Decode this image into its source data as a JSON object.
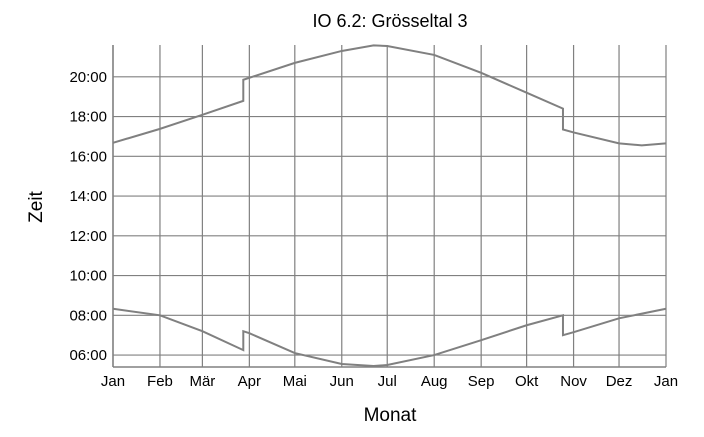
{
  "chart_data": {
    "type": "line",
    "title": "IO 6.2: Grösseltal 3",
    "xlabel": "Monat",
    "ylabel": "Zeit",
    "xlim": [
      0,
      365
    ],
    "xticks": [
      {
        "value": 0,
        "label": "Jan"
      },
      {
        "value": 31,
        "label": "Feb"
      },
      {
        "value": 59,
        "label": "Mär"
      },
      {
        "value": 90,
        "label": "Apr"
      },
      {
        "value": 120,
        "label": "Mai"
      },
      {
        "value": 151,
        "label": "Jun"
      },
      {
        "value": 181,
        "label": "Jul"
      },
      {
        "value": 212,
        "label": "Aug"
      },
      {
        "value": 243,
        "label": "Sep"
      },
      {
        "value": 273,
        "label": "Okt"
      },
      {
        "value": 304,
        "label": "Nov"
      },
      {
        "value": 334,
        "label": "Dez"
      },
      {
        "value": 365,
        "label": "Jan"
      }
    ],
    "ylim": [
      5.4,
      21.6
    ],
    "yticks": [
      {
        "value": 6,
        "label": "06:00"
      },
      {
        "value": 8,
        "label": "08:00"
      },
      {
        "value": 10,
        "label": "10:00"
      },
      {
        "value": 12,
        "label": "12:00"
      },
      {
        "value": 14,
        "label": "14:00"
      },
      {
        "value": 16,
        "label": "16:00"
      },
      {
        "value": 18,
        "label": "18:00"
      },
      {
        "value": 20,
        "label": "20:00"
      }
    ],
    "grid": true,
    "series": [
      {
        "color": "#808080",
        "x": [
          0,
          31,
          59,
          86,
          86,
          90,
          120,
          151,
          172,
          181,
          212,
          243,
          273,
          297,
          297,
          304,
          334,
          349,
          365
        ],
        "values": [
          16.68,
          17.38,
          18.09,
          18.79,
          19.85,
          19.95,
          20.7,
          21.3,
          21.58,
          21.55,
          21.1,
          20.2,
          19.2,
          18.4,
          17.35,
          17.2,
          16.65,
          16.55,
          16.65
        ]
      },
      {
        "color": "#808080",
        "x": [
          0,
          31,
          59,
          86,
          86,
          90,
          120,
          151,
          172,
          181,
          212,
          243,
          273,
          297,
          297,
          304,
          334,
          365
        ],
        "values": [
          8.33,
          8.0,
          7.2,
          6.25,
          7.2,
          7.1,
          6.1,
          5.55,
          5.45,
          5.5,
          6.0,
          6.75,
          7.5,
          8.0,
          7.0,
          7.15,
          7.85,
          8.33
        ]
      }
    ]
  }
}
